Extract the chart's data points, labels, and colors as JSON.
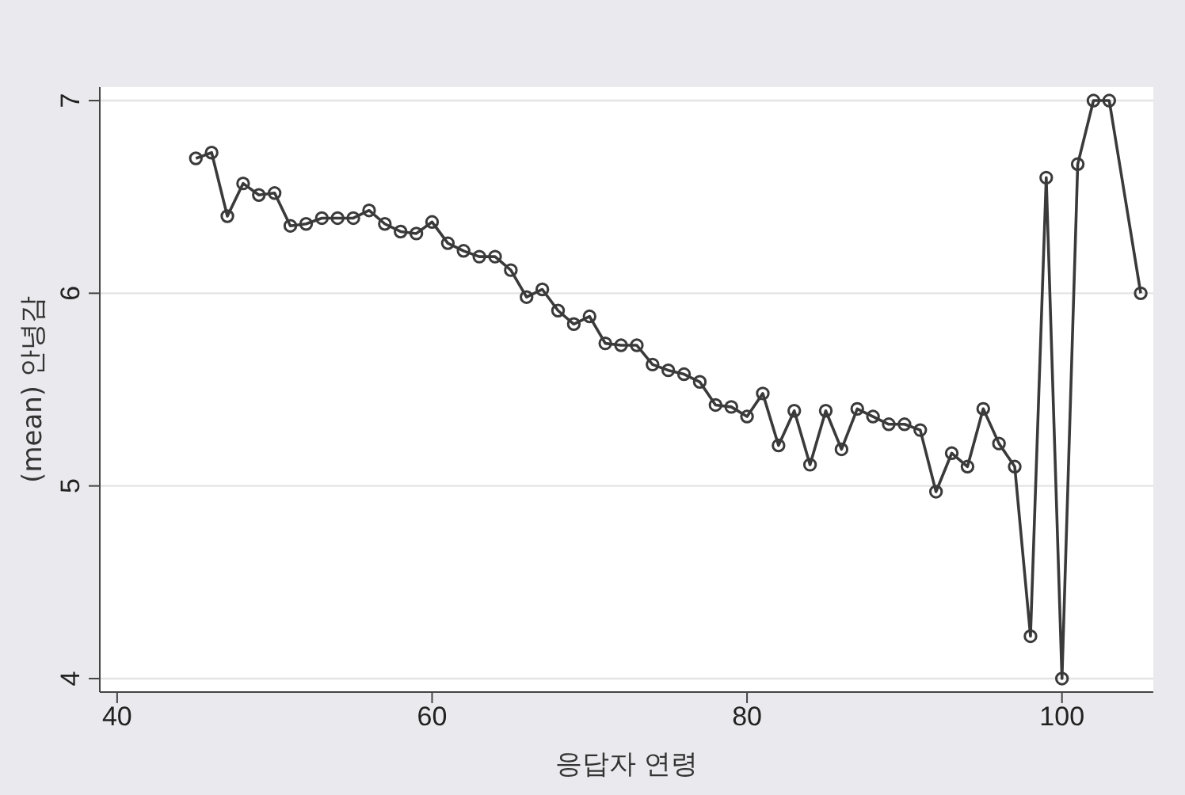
{
  "chart_data": {
    "type": "line",
    "xlabel": "응답자 연령",
    "ylabel": "(mean) 안녕감",
    "x": [
      45,
      46,
      47,
      48,
      49,
      50,
      51,
      52,
      53,
      54,
      55,
      56,
      57,
      58,
      59,
      60,
      61,
      62,
      63,
      64,
      65,
      66,
      67,
      68,
      69,
      70,
      71,
      72,
      73,
      74,
      75,
      76,
      77,
      78,
      79,
      80,
      81,
      82,
      83,
      84,
      85,
      86,
      87,
      88,
      89,
      90,
      91,
      92,
      93,
      94,
      95,
      96,
      97,
      98,
      99,
      100,
      101,
      102,
      103,
      105
    ],
    "series": [
      {
        "color": "#3a3a3a",
        "values": [
          6.7,
          6.73,
          6.4,
          6.57,
          6.51,
          6.52,
          6.35,
          6.36,
          6.39,
          6.39,
          6.39,
          6.43,
          6.36,
          6.32,
          6.31,
          6.37,
          6.26,
          6.22,
          6.19,
          6.19,
          6.12,
          5.98,
          6.02,
          5.91,
          5.84,
          5.88,
          5.74,
          5.73,
          5.73,
          5.63,
          5.6,
          5.58,
          5.54,
          5.42,
          5.41,
          5.36,
          5.48,
          5.21,
          5.39,
          5.11,
          5.39,
          5.19,
          5.4,
          5.36,
          5.32,
          5.32,
          5.29,
          4.97,
          5.17,
          5.1,
          5.4,
          5.22,
          5.1,
          4.22,
          6.6,
          4.0,
          6.67,
          7.0,
          7.0,
          6.0
        ]
      }
    ],
    "xlim": [
      38.9,
      105.8
    ],
    "ylim": [
      3.93,
      7.07
    ],
    "xticks": [
      40,
      60,
      80,
      100
    ],
    "yticks": [
      4,
      5,
      6,
      7
    ],
    "grid": "y",
    "marker": "circle",
    "line_style": "solid"
  }
}
